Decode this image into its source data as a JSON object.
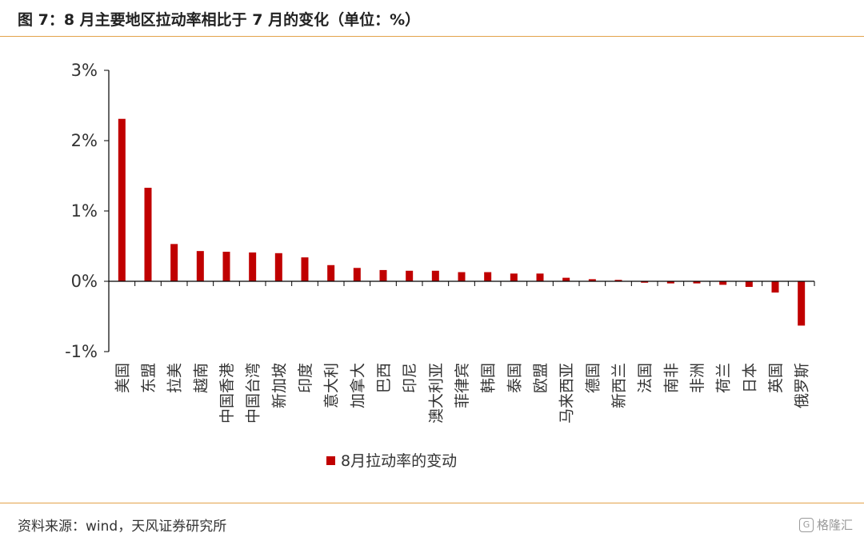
{
  "header": {
    "title": "图 7：8 月主要地区拉动率相比于 7 月的变化（单位：%）"
  },
  "footer": {
    "source": "资料来源：wind，天风证券研究所",
    "watermark": "格隆汇",
    "watermark_icon": "glh-logo-icon"
  },
  "colors": {
    "bar": "#c00000",
    "rule": "#e3a24a",
    "axis": "#000000"
  },
  "chart_data": {
    "type": "bar",
    "categories": [
      "美国",
      "东盟",
      "拉美",
      "越南",
      "中国香港",
      "中国台湾",
      "新加坡",
      "印度",
      "意大利",
      "加拿大",
      "巴西",
      "印尼",
      "澳大利亚",
      "菲律宾",
      "韩国",
      "泰国",
      "欧盟",
      "马来西亚",
      "德国",
      "新西兰",
      "法国",
      "南非",
      "非洲",
      "荷兰",
      "日本",
      "英国",
      "俄罗斯"
    ],
    "series": [
      {
        "name": "8月拉动率的变动",
        "values": [
          2.31,
          1.33,
          0.53,
          0.43,
          0.42,
          0.41,
          0.4,
          0.34,
          0.23,
          0.19,
          0.16,
          0.15,
          0.15,
          0.13,
          0.13,
          0.11,
          0.11,
          0.05,
          0.03,
          0.02,
          -0.02,
          -0.03,
          -0.03,
          -0.05,
          -0.08,
          -0.16,
          -0.63
        ]
      }
    ],
    "yticks": [
      "3%",
      "2%",
      "1%",
      "0%",
      "-1%"
    ],
    "ylim": [
      -1,
      3
    ],
    "grid": false,
    "legend": "bottom"
  }
}
